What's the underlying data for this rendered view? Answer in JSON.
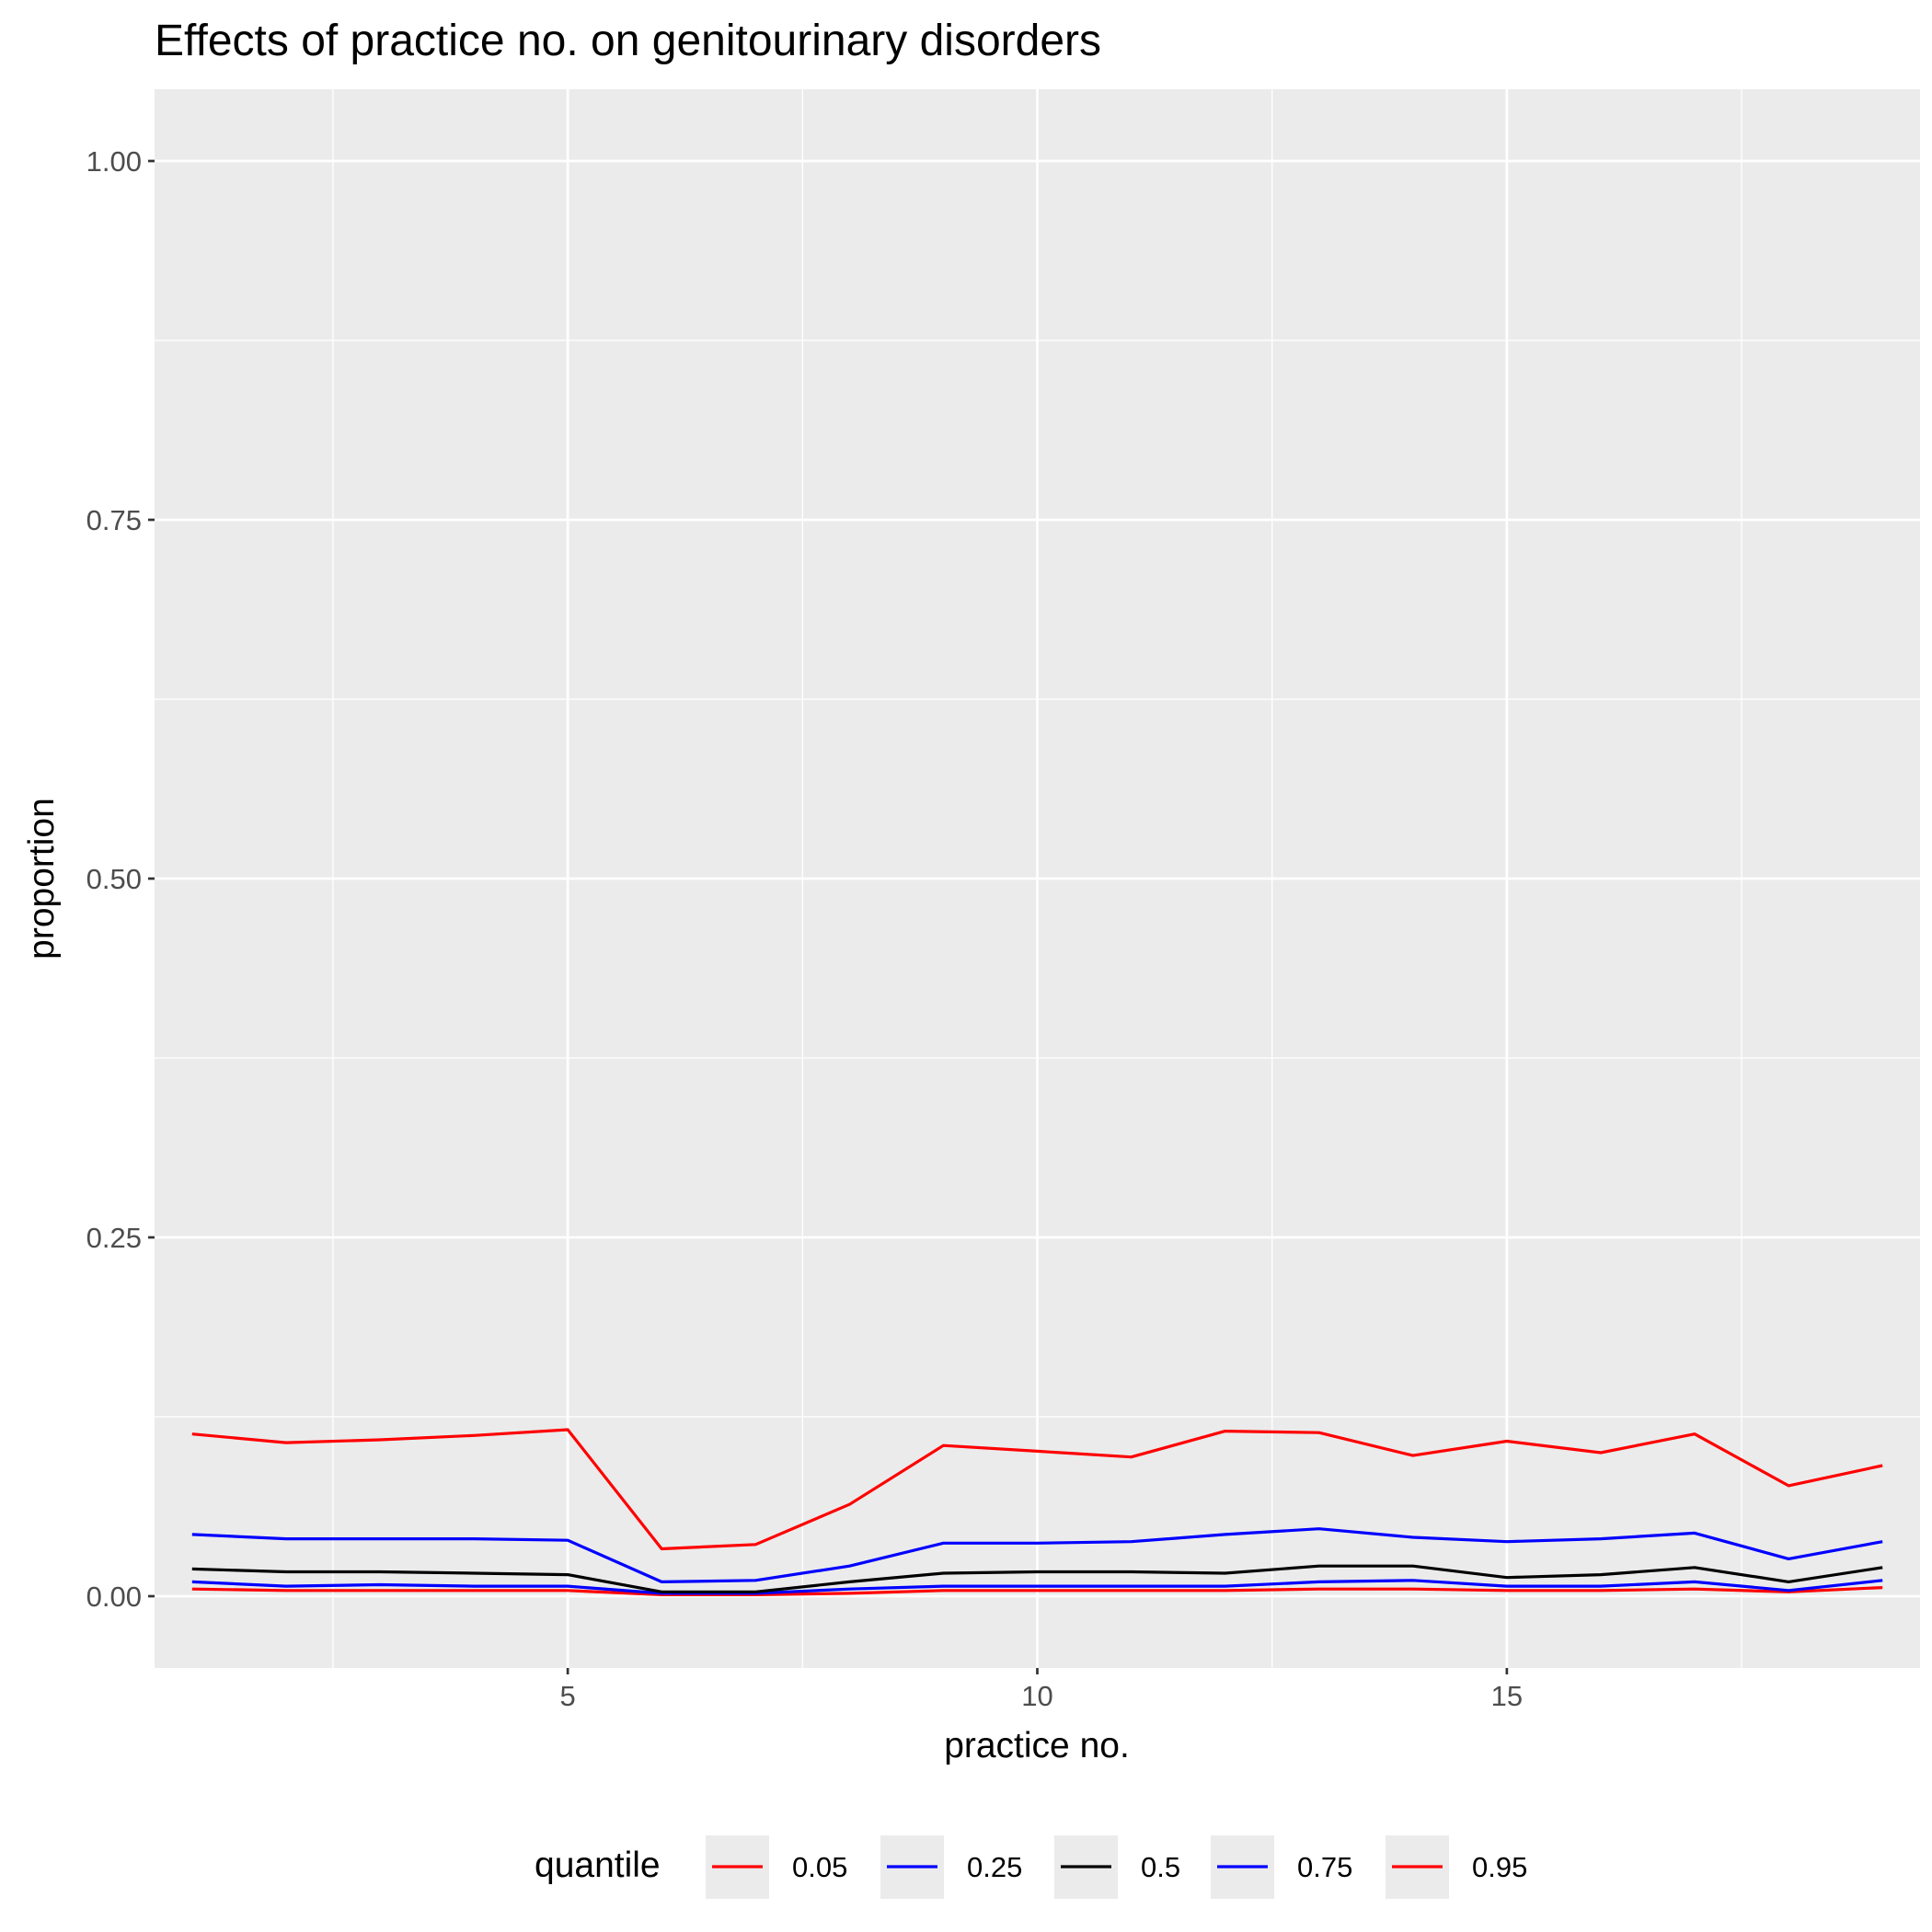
{
  "chart_data": {
    "type": "line",
    "title": "Effects of practice no. on genitourinary disorders",
    "xlabel": "practice no.",
    "ylabel": "proportion",
    "xlim": [
      0.6,
      19.4
    ],
    "ylim": [
      -0.05,
      1.05
    ],
    "x_ticks": [
      5,
      10,
      15
    ],
    "x_tick_labels": [
      "5",
      "10",
      "15"
    ],
    "y_ticks": [
      0,
      0.25,
      0.5,
      0.75,
      1
    ],
    "y_tick_labels": [
      "0.00",
      "0.25",
      "0.50",
      "0.75",
      "1.00"
    ],
    "grid": true,
    "legend_position": "bottom",
    "legend_title": "quantile",
    "x": [
      1,
      2,
      3,
      4,
      5,
      6,
      7,
      8,
      9,
      10,
      11,
      12,
      13,
      14,
      15,
      16,
      17,
      18,
      19
    ],
    "series": [
      {
        "name": "0.05",
        "color": "#ff0000",
        "values": [
          0.005,
          0.004,
          0.004,
          0.004,
          0.004,
          0.001,
          0.001,
          0.002,
          0.004,
          0.004,
          0.004,
          0.004,
          0.005,
          0.005,
          0.004,
          0.004,
          0.005,
          0.003,
          0.006
        ]
      },
      {
        "name": "0.25",
        "color": "#0000ff",
        "values": [
          0.01,
          0.007,
          0.008,
          0.007,
          0.007,
          0.002,
          0.002,
          0.005,
          0.007,
          0.007,
          0.007,
          0.007,
          0.01,
          0.011,
          0.007,
          0.007,
          0.01,
          0.004,
          0.011
        ]
      },
      {
        "name": "0.5",
        "color": "#000000",
        "values": [
          0.019,
          0.017,
          0.017,
          0.016,
          0.015,
          0.003,
          0.003,
          0.01,
          0.016,
          0.017,
          0.017,
          0.016,
          0.021,
          0.021,
          0.013,
          0.015,
          0.02,
          0.01,
          0.02
        ]
      },
      {
        "name": "0.75",
        "color": "#0000ff",
        "values": [
          0.043,
          0.04,
          0.04,
          0.04,
          0.039,
          0.01,
          0.011,
          0.021,
          0.037,
          0.037,
          0.038,
          0.043,
          0.047,
          0.041,
          0.038,
          0.04,
          0.044,
          0.026,
          0.038
        ]
      },
      {
        "name": "0.95",
        "color": "#ff0000",
        "values": [
          0.113,
          0.107,
          0.109,
          0.112,
          0.116,
          0.033,
          0.036,
          0.064,
          0.105,
          0.101,
          0.097,
          0.115,
          0.114,
          0.098,
          0.108,
          0.1,
          0.113,
          0.077,
          0.091
        ]
      }
    ]
  }
}
